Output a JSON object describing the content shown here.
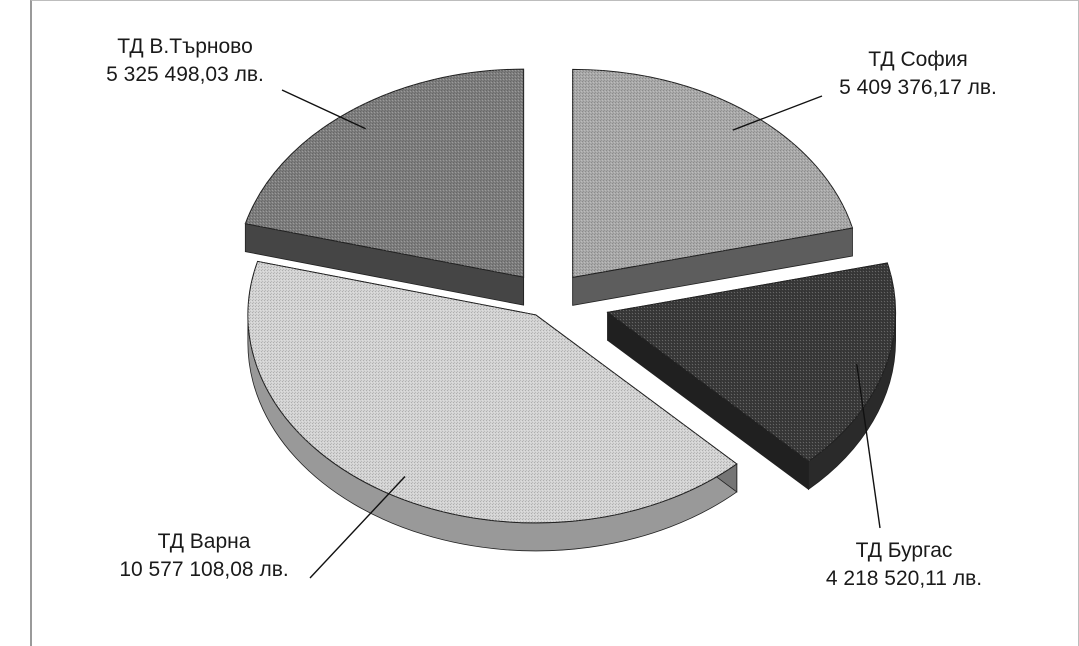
{
  "chart_data": {
    "type": "pie",
    "style": "3d-exploded",
    "title": "",
    "categories": [
      "ТД София",
      "ТД Бургас",
      "ТД Варна",
      "ТД В.Търново"
    ],
    "values": [
      5409376.17,
      4218520.11,
      10577108.08,
      5325498.03
    ],
    "value_labels": [
      "5 409 376,17 лв.",
      "4 218 520,11 лв.",
      "10 577 108,08 лв.",
      "5 325 498,03 лв."
    ],
    "colors": [
      "#a9a9a9",
      "#3a3a3a",
      "#d4d4d4",
      "#7d7d7d"
    ],
    "legend": "none"
  }
}
